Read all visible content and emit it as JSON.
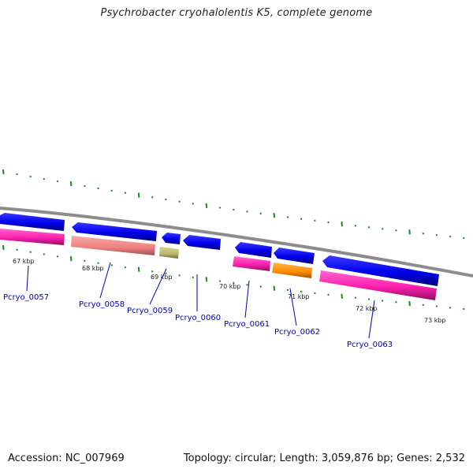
{
  "title": "Psychrobacter cryohalolentis K5, complete genome",
  "footer": {
    "accession": "Accession: NC_007969",
    "summary": "Topology: circular; Length: 3,059,876 bp; Genes: 2,532"
  },
  "colors": {
    "backbone": "#808080",
    "cds_forward": "#0000ee",
    "gene_pink": "#ff1faf",
    "gene_salmon": "#f08080",
    "gene_olive": "#bdb76b",
    "gene_orange": "#ff8c00",
    "tick": "#1a8a1a",
    "label": "#0000b3"
  },
  "scale_ticks": [
    {
      "label": "67 kbp"
    },
    {
      "label": "68 kbp"
    },
    {
      "label": "69 kbp"
    },
    {
      "label": "70 kbp"
    },
    {
      "label": "71 kbp"
    },
    {
      "label": "72 kbp"
    },
    {
      "label": "73 kbp"
    }
  ],
  "genes": [
    {
      "label": "Pcryo_0057",
      "color_key": "gene_pink"
    },
    {
      "label": "Pcryo_0058",
      "color_key": "gene_salmon"
    },
    {
      "label": "Pcryo_0059",
      "color_key": "gene_olive"
    },
    {
      "label": "Pcryo_0060",
      "color_key": "cds_forward"
    },
    {
      "label": "Pcryo_0061",
      "color_key": "gene_pink"
    },
    {
      "label": "Pcryo_0062",
      "color_key": "gene_orange"
    },
    {
      "label": "Pcryo_0063",
      "color_key": "gene_pink"
    }
  ]
}
